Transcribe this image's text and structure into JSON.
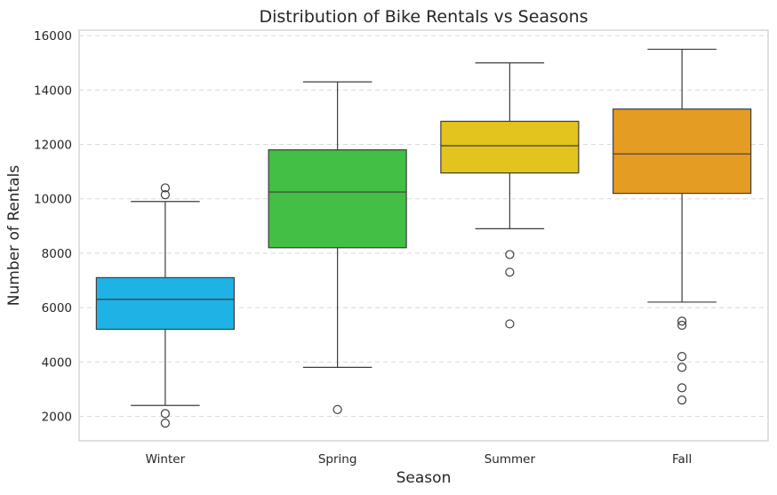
{
  "chart_data": {
    "type": "box",
    "title": "Distribution of Bike Rentals vs Seasons",
    "xlabel": "Season",
    "ylabel": "Number of Rentals",
    "categories": [
      "Winter",
      "Spring",
      "Summer",
      "Fall"
    ],
    "ylim": [
      1100,
      16200
    ],
    "yticks": [
      2000,
      4000,
      6000,
      8000,
      10000,
      12000,
      14000,
      16000
    ],
    "yticklabels": [
      "2000",
      "4000",
      "6000",
      "8000",
      "10000",
      "12000",
      "14000",
      "16000"
    ],
    "grid": true,
    "boxes": [
      {
        "category": "Winter",
        "color": "#1fb3e5",
        "whisker_low": 2400,
        "q1": 5200,
        "median": 6300,
        "q3": 7100,
        "whisker_high": 9900,
        "outliers": [
          1750,
          2100,
          10150,
          10400
        ]
      },
      {
        "category": "Spring",
        "color": "#43bf46",
        "whisker_low": 3800,
        "q1": 8200,
        "median": 10250,
        "q3": 11800,
        "whisker_high": 14300,
        "outliers": [
          2250
        ]
      },
      {
        "category": "Summer",
        "color": "#e3c31d",
        "whisker_low": 8900,
        "q1": 10950,
        "median": 11950,
        "q3": 12850,
        "whisker_high": 15000,
        "outliers": [
          5400,
          7300,
          7950
        ]
      },
      {
        "category": "Fall",
        "color": "#e59c22",
        "whisker_low": 6200,
        "q1": 10200,
        "median": 11650,
        "q3": 13300,
        "whisker_high": 15500,
        "outliers": [
          2600,
          3050,
          3800,
          4200,
          5350,
          5500
        ]
      }
    ]
  }
}
